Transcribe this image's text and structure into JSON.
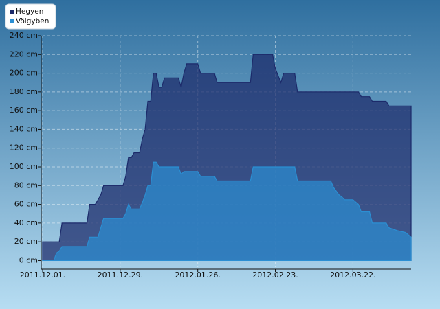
{
  "chart_data": {
    "type": "area",
    "x": [
      "2011.12.01.",
      "2011.12.05.",
      "2011.12.06.",
      "2011.12.07.",
      "2011.12.08.",
      "2011.12.17.",
      "2011.12.18.",
      "2011.12.20.",
      "2011.12.21.",
      "2011.12.22.",
      "2011.12.23.",
      "2011.12.30.",
      "2011.12.31.",
      "2012.01.01.",
      "2012.01.02.",
      "2012.01.03.",
      "2012.01.05.",
      "2012.01.06.",
      "2012.01.07.",
      "2012.01.08.",
      "2012.01.09.",
      "2012.01.10.",
      "2012.01.11.",
      "2012.01.12.",
      "2012.01.13.",
      "2012.01.14.",
      "2012.01.19.",
      "2012.01.20.",
      "2012.01.21.",
      "2012.01.22.",
      "2012.01.26.",
      "2012.01.27.",
      "2012.02.01.",
      "2012.02.02.",
      "2012.02.14.",
      "2012.02.15.",
      "2012.02.22.",
      "2012.02.23.",
      "2012.02.25.",
      "2012.02.26.",
      "2012.03.01.",
      "2012.03.02.",
      "2012.03.14.",
      "2012.03.15.",
      "2012.03.17.",
      "2012.03.18.",
      "2012.03.19.",
      "2012.03.22.",
      "2012.03.24.",
      "2012.03.25.",
      "2012.03.28.",
      "2012.03.29.",
      "2012.04.03.",
      "2012.04.04.",
      "2012.04.07.",
      "2012.04.10.",
      "2012.04.12."
    ],
    "series": [
      {
        "name": "Hegyen",
        "color": "#1c2a6a",
        "values": [
          20,
          20,
          20,
          20,
          40,
          40,
          60,
          60,
          65,
          70,
          80,
          80,
          90,
          110,
          110,
          115,
          115,
          130,
          140,
          170,
          170,
          200,
          200,
          185,
          185,
          195,
          195,
          185,
          200,
          210,
          210,
          200,
          200,
          190,
          190,
          220,
          220,
          205,
          190,
          200,
          200,
          180,
          180,
          180,
          180,
          180,
          180,
          180,
          180,
          175,
          175,
          170,
          170,
          165,
          165,
          165,
          165
        ]
      },
      {
        "name": "Völgyben",
        "color": "#2b8fd3",
        "values": [
          0,
          0,
          8,
          10,
          15,
          15,
          25,
          25,
          25,
          35,
          45,
          45,
          50,
          60,
          55,
          55,
          55,
          62,
          70,
          80,
          80,
          105,
          105,
          100,
          100,
          100,
          100,
          92,
          95,
          95,
          95,
          90,
          90,
          85,
          85,
          100,
          100,
          100,
          100,
          100,
          100,
          85,
          85,
          78,
          70,
          68,
          65,
          65,
          60,
          52,
          52,
          40,
          40,
          35,
          32,
          30,
          25
        ]
      }
    ],
    "xlim": [
      "2011.12.01.",
      "2012.04.12."
    ],
    "xticks": [
      "2011.12.01.",
      "2011.12.29.",
      "2012.01.26.",
      "2012.02.23.",
      "2012.03.22."
    ],
    "ylim": [
      -7,
      240
    ],
    "yticks": [
      {
        "value": 0,
        "label": "0 cm"
      },
      {
        "value": 20,
        "label": "20 cm"
      },
      {
        "value": 40,
        "label": "40 cm"
      },
      {
        "value": 60,
        "label": "60 cm"
      },
      {
        "value": 80,
        "label": "80 cm"
      },
      {
        "value": 100,
        "label": "100 cm"
      },
      {
        "value": 120,
        "label": "120 cm"
      },
      {
        "value": 140,
        "label": "140 cm"
      },
      {
        "value": 160,
        "label": "160 cm"
      },
      {
        "value": 180,
        "label": "180 cm"
      },
      {
        "value": 200,
        "label": "200 cm"
      },
      {
        "value": 220,
        "label": "220 cm"
      },
      {
        "value": 240,
        "label": "240 cm"
      }
    ],
    "grid": true,
    "legend": "top-left"
  }
}
